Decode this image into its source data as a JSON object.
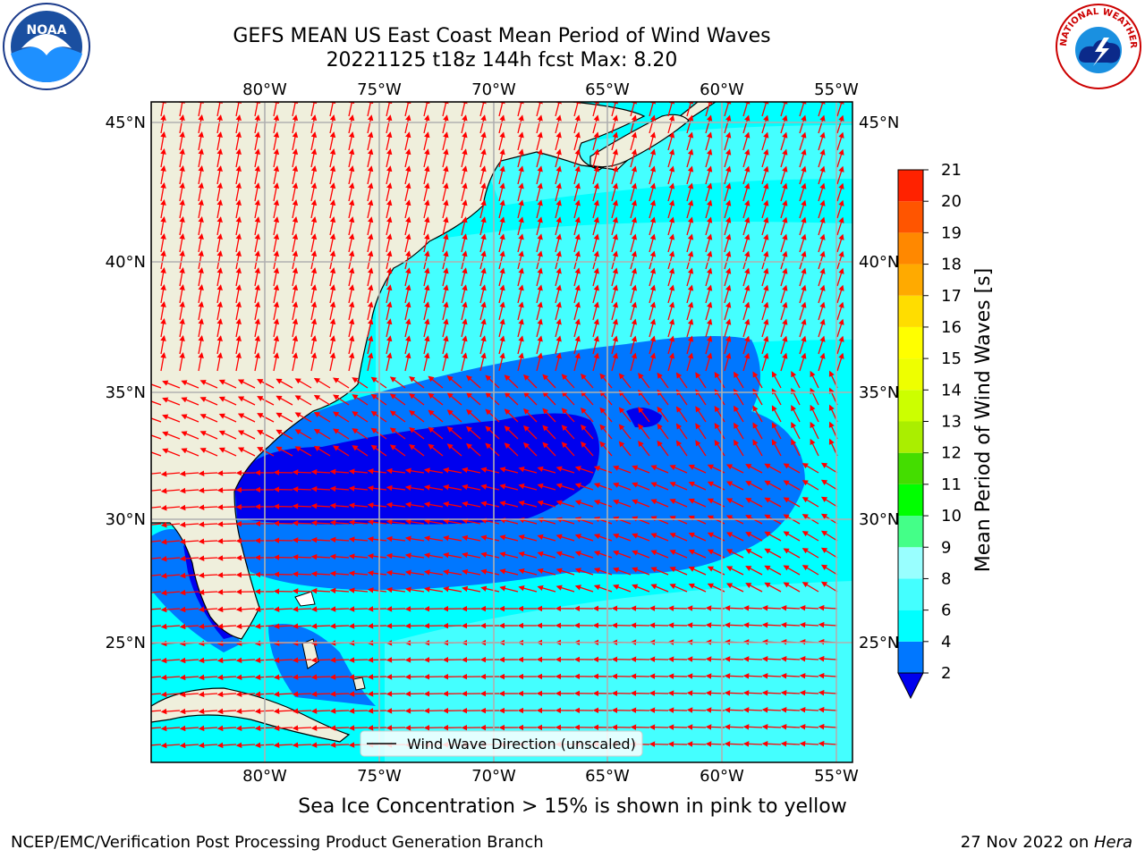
{
  "title": {
    "line1": "GEFS MEAN US East Coast Mean Period of Wind Waves",
    "line2": "20221125 t18z 144h fcst   Max: 8.20"
  },
  "logos": {
    "noaa": {
      "text": "NOAA",
      "icon": "noaa-logo-icon"
    },
    "nws": {
      "text": "NATIONAL WEATHER SERVICE",
      "icon": "nws-logo-icon"
    }
  },
  "map": {
    "lon_labels": [
      "80°W",
      "75°W",
      "70°W",
      "65°W",
      "60°W",
      "55°W"
    ],
    "lat_labels": [
      "45°N",
      "40°N",
      "35°N",
      "30°N",
      "25°N"
    ],
    "lon_range": [
      -85,
      -54.4
    ],
    "lat_range": [
      20.4,
      46
    ],
    "land_color": "#efefdc",
    "arrow_color": "#ff0000",
    "legend_label": "Wind Wave Direction (unscaled)"
  },
  "colorbar": {
    "label": "Mean Period of Wind Waves [s]",
    "ticks": [
      "2",
      "4",
      "6",
      "8",
      "9",
      "10",
      "11",
      "12",
      "13",
      "14",
      "15",
      "16",
      "17",
      "18",
      "19",
      "20",
      "21"
    ],
    "colors": [
      "#0077ff",
      "#00ffff",
      "#44ffff",
      "#99ffff",
      "#44ff88",
      "#00ff00",
      "#44dd00",
      "#aaee00",
      "#ccff00",
      "#eeff00",
      "#ffff00",
      "#ffdd00",
      "#ffaa00",
      "#ff8800",
      "#ff5500",
      "#ff2200"
    ],
    "under_color": "#0000ee"
  },
  "footer": {
    "note": "Sea Ice Concentration > 15% is shown in pink to yellow",
    "left": "NCEP/EMC/Verification Post Processing Product Generation Branch",
    "right_date": "27 Nov 2022 on ",
    "right_host": "Hera"
  }
}
